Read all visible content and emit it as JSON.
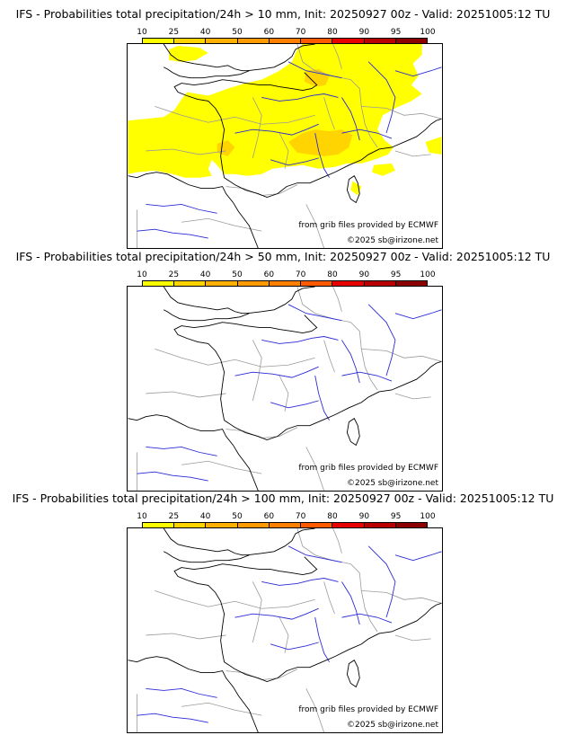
{
  "colorbar": {
    "labels": [
      "10",
      "25",
      "40",
      "50",
      "60",
      "70",
      "80",
      "90",
      "95",
      "100"
    ],
    "colors": [
      "#ffff00",
      "#ffd400",
      "#ffb000",
      "#ff9a00",
      "#ff8000",
      "#ff5a00",
      "#e60000",
      "#b80000",
      "#8c0000",
      "#640000"
    ]
  },
  "panels": [
    {
      "title": "IFS - Probabilities total precipitation/24h > 10 mm, Init: 20250927 00z - Valid: 20251005:12 TU",
      "source": "from grib files provided by ECMWF",
      "copyright": "©2025 sb@irizone.net",
      "has_precip": true
    },
    {
      "title": "IFS - Probabilities total precipitation/24h > 50 mm, Init: 20250927 00z - Valid: 20251005:12 TU",
      "source": "from grib files provided by ECMWF",
      "copyright": "©2025 sb@irizone.net",
      "has_precip": false
    },
    {
      "title": "IFS - Probabilities total precipitation/24h > 100 mm, Init: 20250927 00z - Valid: 20251005:12 TU",
      "source": "from grib files provided by ECMWF",
      "copyright": "©2025 sb@irizone.net",
      "has_precip": false
    }
  ],
  "colors": {
    "coast": "#000000",
    "rivers": "#2a2ad6",
    "borders": "#9a9a9a",
    "precip_low": "#ffff00",
    "precip_mid": "#ffd400"
  }
}
